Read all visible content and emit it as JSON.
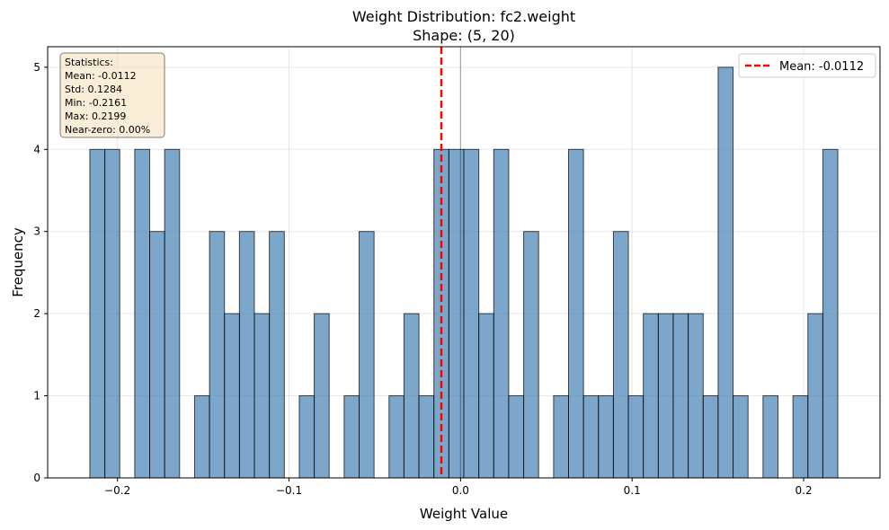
{
  "chart_data": {
    "type": "bar",
    "subtype": "histogram",
    "title": "Weight Distribution: fc2.weight",
    "subtitle": "Shape: (5, 20)",
    "xlabel": "Weight Value",
    "ylabel": "Frequency",
    "xlim": [
      -0.2407,
      0.2445
    ],
    "ylim": [
      0,
      5.25
    ],
    "x_ticks": [
      -0.2,
      -0.1,
      0.0,
      0.1,
      0.2
    ],
    "x_tick_labels": [
      "−0.2",
      "−0.1",
      "0.0",
      "0.1",
      "0.2"
    ],
    "y_ticks": [
      0,
      1,
      2,
      3,
      4,
      5
    ],
    "y_tick_labels": [
      "0",
      "1",
      "2",
      "3",
      "4",
      "5"
    ],
    "grid": true,
    "bin_min": -0.2161,
    "bin_max": 0.2199,
    "bin_count": 50,
    "bin_counts": [
      4,
      4,
      0,
      4,
      3,
      4,
      0,
      1,
      3,
      2,
      3,
      2,
      3,
      0,
      1,
      2,
      0,
      1,
      3,
      0,
      1,
      2,
      1,
      4,
      4,
      4,
      2,
      4,
      1,
      3,
      0,
      1,
      4,
      1,
      1,
      3,
      1,
      2,
      2,
      2,
      2,
      1,
      5,
      1,
      0,
      1,
      0,
      1,
      2,
      4
    ],
    "bar_color": "#4682b4",
    "bar_edge_color": "#000000",
    "zero_line": 0.0,
    "mean_line": {
      "value": -0.0112,
      "color": "#ff0000",
      "style": "dashed"
    },
    "legend": {
      "position": "top-right",
      "entries": [
        {
          "label": "Mean: -0.0112",
          "color": "#ff0000",
          "style": "dashed"
        }
      ]
    },
    "stats_box": {
      "position": "top-left",
      "lines": [
        "Statistics:",
        "Mean: -0.0112",
        "Std: 0.1284",
        "Min: -0.2161",
        "Max: 0.2199",
        "Near-zero: 0.00%"
      ]
    }
  }
}
